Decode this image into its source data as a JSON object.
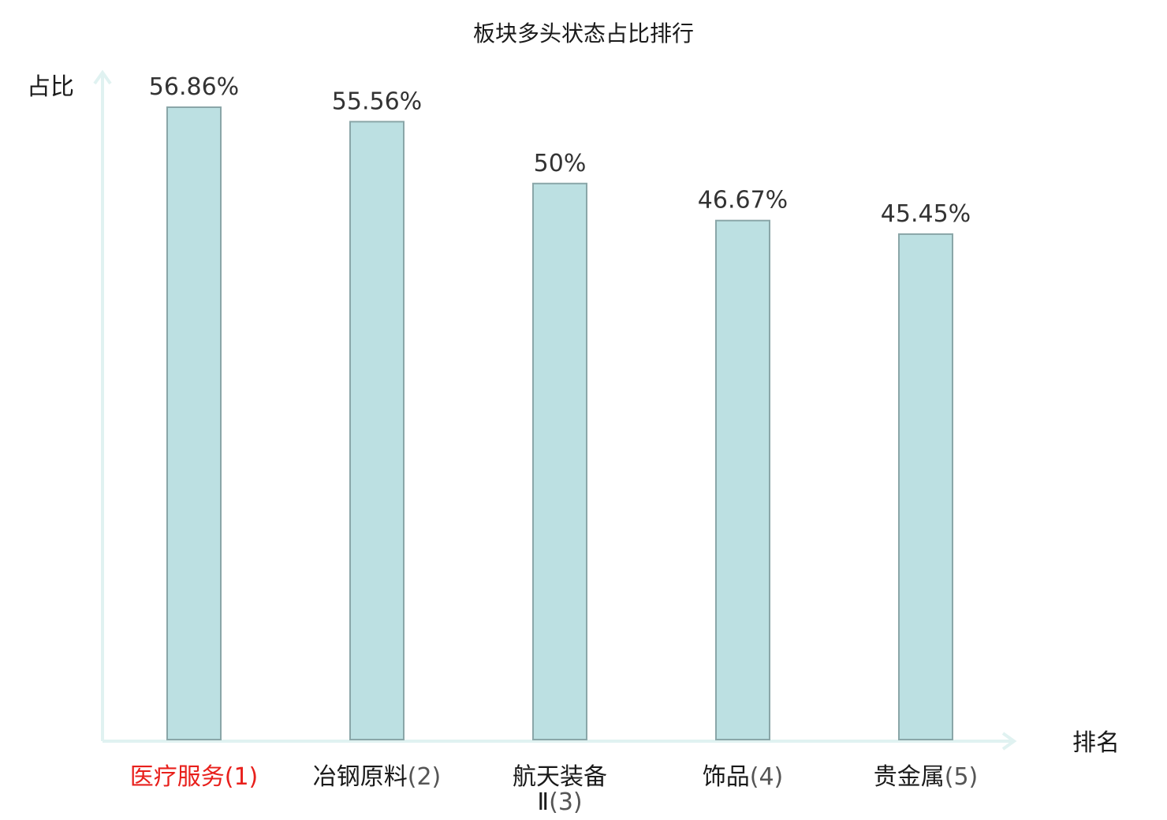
{
  "chart_data": {
    "type": "bar",
    "title": "板块多头状态占比排行",
    "ylabel": "占比",
    "xlabel": "排名",
    "categories": [
      {
        "name": "医疗服务",
        "rank": "(1)",
        "lines": [
          "医疗服务(1)"
        ]
      },
      {
        "name": "冶钢原料",
        "rank": "(2)",
        "lines": [
          "冶钢原料(2)"
        ]
      },
      {
        "name": "航天装备Ⅱ",
        "rank": "(3)",
        "lines": [
          "航天装备",
          "Ⅱ(3)"
        ]
      },
      {
        "name": "饰品",
        "rank": "(4)",
        "lines": [
          "饰品(4)"
        ]
      },
      {
        "name": "贵金属",
        "rank": "(5)",
        "lines": [
          "贵金属(5)"
        ]
      }
    ],
    "values": [
      56.86,
      55.56,
      50,
      46.67,
      45.45
    ],
    "value_labels": [
      "56.86%",
      "55.56%",
      "50%",
      "46.67%",
      "45.45%"
    ],
    "ylim": [
      0,
      56.86
    ],
    "grid": false,
    "highlight_index": 0,
    "colors": {
      "bar_fill": "#bce0e2",
      "bar_stroke": "#8aa6a8",
      "axis": "#e0f2f1",
      "highlight_text": "#e8201c",
      "category_text": "#1a1a1a",
      "rank_text": "#555555"
    }
  }
}
